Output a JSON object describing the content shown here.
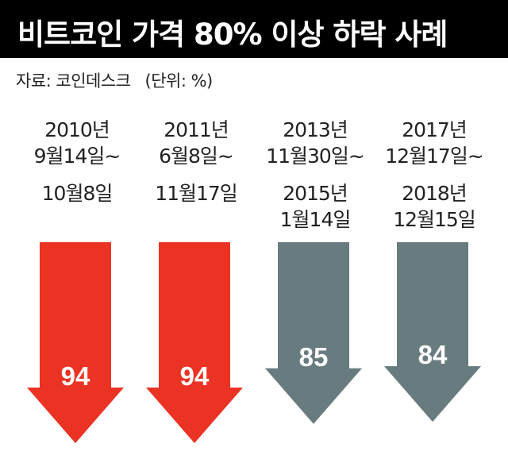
{
  "title": "비트코인 가격 80% 이상 하락 사례",
  "source": "자료: 코인데스크",
  "unit": "(단위: %)",
  "colors": {
    "header_bg": "#000000",
    "red": "#ea3323",
    "gray": "#687b7f"
  },
  "chart_data": {
    "type": "bar",
    "title": "비트코인 가격 80% 이상 하락 사례",
    "ylabel": "",
    "unit": "%",
    "categories": [
      "2010년 9월14일~ 10월8일",
      "2011년 6월8일~ 11월17일",
      "2013년 11월30일~ 2015년 1월14일",
      "2017년 12월17일~ 2018년 12월15일"
    ],
    "series": [
      {
        "values": [
          94,
          94,
          85,
          84
        ]
      }
    ],
    "value_labels": [
      "94",
      "94",
      "85",
      "84"
    ],
    "bar_colors": [
      "red",
      "red",
      "gray",
      "gray"
    ],
    "periods": [
      {
        "start": [
          "2010년",
          "9월14일~"
        ],
        "end": [
          "10월8일"
        ]
      },
      {
        "start": [
          "2011년",
          "6월8일~"
        ],
        "end": [
          "11월17일"
        ]
      },
      {
        "start": [
          "2013년",
          "11월30일~"
        ],
        "end": [
          "2015년",
          "1월14일"
        ]
      },
      {
        "start": [
          "2017년",
          "12월17일~"
        ],
        "end": [
          "2018년",
          "12월15일"
        ]
      }
    ]
  }
}
